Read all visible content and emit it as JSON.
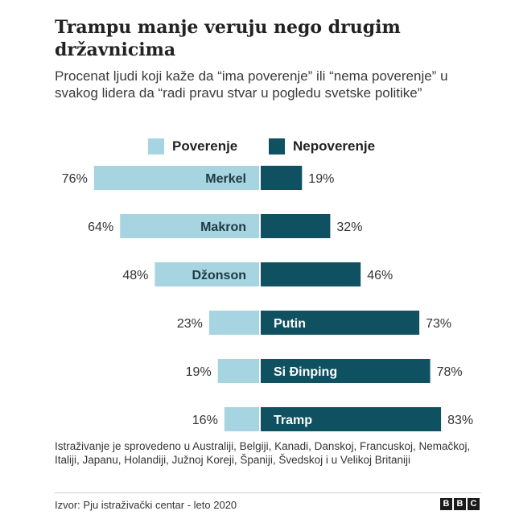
{
  "colors": {
    "trust": "#a6d4e0",
    "distrust": "#0f5161",
    "text": "#222222"
  },
  "chart_data": {
    "type": "bar",
    "title": "Trampu manje veruju nego drugim državnicima",
    "subtitle": "Procenat ljudi koji kaže da “ima poverenje” ili “nema poverenje” u svakog lidera da “radi pravu stvar u pogledu svetske politike”",
    "categories": [
      "Merkel",
      "Makron",
      "Džonson",
      "Putin",
      "Si Đinping",
      "Tramp"
    ],
    "series": [
      {
        "name": "Poverenje",
        "values": [
          76,
          64,
          48,
          23,
          19,
          16
        ],
        "labels": [
          "76%",
          "64%",
          "48%",
          "23%",
          "19%",
          "16%"
        ]
      },
      {
        "name": "Nepoverenje",
        "values": [
          19,
          32,
          46,
          73,
          78,
          83
        ],
        "labels": [
          "19%",
          "32%",
          "46%",
          "73%",
          "78%",
          "83%"
        ]
      }
    ],
    "legend_position": "top",
    "grid": false,
    "xlim": [
      0,
      100
    ]
  },
  "footnote": "Istraživanje je sprovedeno u Australiji, Belgiji, Kanadi, Danskoj, Francuskoj, Nemačkoj, Italiji, Japanu, Holandiji, Južnoj Koreji, Španiji, Švedskoj i u Velikoj Britaniji",
  "source": "Izvor: Pju istraživački centar - leto 2020",
  "logo": {
    "letters": [
      "B",
      "B",
      "C"
    ]
  }
}
